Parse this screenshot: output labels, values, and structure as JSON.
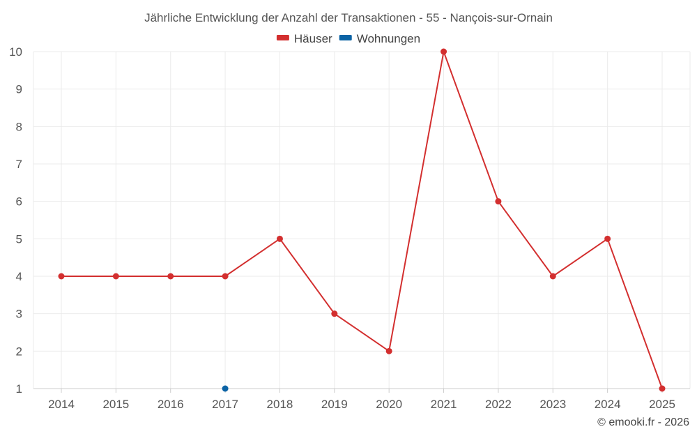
{
  "colors": {
    "houses": "#d32f2f",
    "apartments": "#0b63a5",
    "grid": "#ebebeb",
    "axis": "#cccccc",
    "text": "#555555"
  },
  "chart_data": {
    "type": "line",
    "title": "Jährliche Entwicklung der Anzahl der Transaktionen - 55 - Nançois-sur-Ornain",
    "xlabel": "",
    "ylabel": "",
    "categories": [
      "2014",
      "2015",
      "2016",
      "2017",
      "2018",
      "2019",
      "2020",
      "2021",
      "2022",
      "2023",
      "2024",
      "2025"
    ],
    "ylim": [
      1,
      10
    ],
    "yticks": [
      "1",
      "2",
      "3",
      "4",
      "5",
      "6",
      "7",
      "8",
      "9",
      "10"
    ],
    "grid": true,
    "legend_position": "top-center",
    "series": [
      {
        "name": "Häuser",
        "color": "#d32f2f",
        "values": [
          4,
          4,
          4,
          4,
          5,
          3,
          2,
          10,
          6,
          4,
          5,
          1
        ]
      },
      {
        "name": "Wohnungen",
        "color": "#0b63a5",
        "values": [
          null,
          null,
          null,
          1,
          null,
          null,
          null,
          null,
          null,
          null,
          null,
          null
        ]
      }
    ]
  },
  "credit": "© emooki.fr - 2026"
}
